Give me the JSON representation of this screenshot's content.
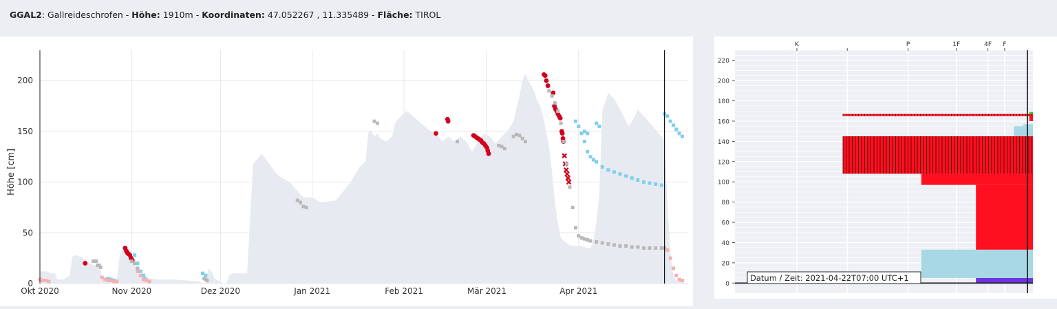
{
  "header": {
    "station_id": "GGAL2",
    "station_name": "Gallreideschrofen",
    "hoehe_label": "Höhe:",
    "hoehe_value": "1910m",
    "koord_label": "Koordinaten:",
    "koord_value": "47.052267 , 11.335489",
    "flaeche_label": "Fläche:",
    "flaeche_value": "TIROL"
  },
  "chart_data": [
    {
      "type": "area",
      "title": "",
      "xlabel": "",
      "ylabel": "Höhe [cm]",
      "ylim": [
        0,
        230
      ],
      "yticks": [
        0,
        50,
        100,
        150,
        200
      ],
      "x_tick_labels": [
        "Okt 2020",
        "Nov 2020",
        "Dez 2020",
        "Jan 2021",
        "Feb 2021",
        "Mär 2021",
        "Apr 2021"
      ],
      "x_tick_days": [
        0,
        31,
        61,
        92,
        123,
        151,
        182
      ],
      "x_range_days": [
        0,
        219
      ],
      "cursor_day": 211,
      "grid": true,
      "colors": {
        "area": "#e8eaf2",
        "red": "#d0021b",
        "grey": "#b8b8b8",
        "blue": "#7fd0ec",
        "pink": "#f4b0b0"
      },
      "snow_height_series": {
        "name": "",
        "x": [
          0,
          1,
          2,
          3,
          4,
          5,
          6,
          8,
          10,
          11,
          12,
          13,
          14,
          15,
          16,
          17,
          18,
          19,
          20,
          21,
          22,
          24,
          25,
          26,
          27,
          28,
          29,
          30,
          31,
          32,
          33,
          34,
          35,
          36,
          37,
          38,
          40,
          45,
          50,
          54,
          55,
          56,
          57,
          58,
          59,
          62,
          63,
          64,
          65,
          66,
          67,
          68,
          69,
          70,
          72,
          75,
          80,
          85,
          88,
          89,
          90,
          92,
          95,
          100,
          105,
          108,
          110,
          111,
          112,
          113,
          114,
          115,
          117,
          119,
          120,
          121,
          122,
          124,
          126,
          128,
          130,
          132,
          134,
          136,
          138,
          140,
          142,
          144,
          146,
          148,
          150,
          152,
          154,
          156,
          158,
          160,
          162,
          163,
          164,
          165,
          166,
          167,
          168,
          169,
          170,
          171,
          172,
          173,
          174,
          175,
          176,
          177,
          178,
          179,
          180,
          181,
          182,
          183,
          184,
          185,
          186,
          187,
          188,
          189,
          190,
          192,
          194,
          196,
          198,
          199,
          200,
          201,
          202,
          203,
          204,
          205,
          206,
          207,
          208,
          209,
          210,
          211,
          212,
          213,
          214,
          215,
          216,
          217,
          218
        ],
        "y": [
          12,
          12,
          12,
          11,
          10,
          10,
          4,
          4,
          8,
          27,
          28,
          27,
          26,
          24,
          22,
          20,
          18,
          18,
          18,
          6,
          6,
          6,
          5,
          5,
          28,
          37,
          37,
          35,
          30,
          22,
          12,
          8,
          6,
          6,
          5,
          5,
          4,
          4,
          3,
          2,
          0,
          0,
          15,
          12,
          5,
          0,
          0,
          8,
          10,
          10,
          10,
          10,
          10,
          10,
          118,
          128,
          108,
          98,
          88,
          85,
          85,
          85,
          80,
          82,
          100,
          115,
          120,
          150,
          150,
          145,
          148,
          143,
          140,
          145,
          158,
          162,
          165,
          170,
          165,
          160,
          155,
          150,
          148,
          140,
          145,
          140,
          145,
          140,
          130,
          140,
          148,
          145,
          138,
          145,
          150,
          160,
          185,
          200,
          207,
          200,
          195,
          190,
          180,
          175,
          165,
          150,
          135,
          110,
          80,
          60,
          45,
          42,
          40,
          38,
          37,
          37,
          37,
          37,
          36,
          35,
          35,
          42,
          60,
          90,
          170,
          188,
          182,
          172,
          160,
          155,
          160,
          165,
          172,
          168,
          165,
          162,
          158,
          155,
          152,
          148,
          145,
          140,
          80,
          30,
          8,
          3,
          2,
          2,
          0
        ]
      },
      "series": [
        {
          "name": "",
          "marker": "circle",
          "color": "red",
          "x": [
            15.3
          ],
          "y": [
            20
          ]
        },
        {
          "name": "",
          "marker": "circle",
          "color": "red",
          "x": [
            28.8,
            29.2,
            29.6,
            30.0,
            30.4,
            30.8,
            31.2
          ],
          "y": [
            35,
            32,
            30,
            29,
            28,
            25,
            23
          ]
        },
        {
          "name": "",
          "marker": "circle",
          "color": "red",
          "x": [
            133.8,
            137.7,
            137.9
          ],
          "y": [
            148,
            162,
            160
          ]
        },
        {
          "name": "",
          "marker": "circle",
          "color": "red",
          "x": [
            146.5,
            147,
            147.5,
            148,
            148.5,
            149,
            149.5,
            150,
            150.5,
            151,
            151.3,
            151.6
          ],
          "y": [
            146,
            145,
            144,
            143,
            142,
            141,
            139,
            138,
            136,
            134,
            131,
            128
          ]
        },
        {
          "name": "",
          "marker": "circle",
          "color": "red",
          "x": [
            170.3,
            170.7,
            171.1,
            171.6,
            173.4,
            173.8,
            174.2,
            174.6,
            175.0,
            175.4,
            175.8,
            176.3
          ],
          "y": [
            206,
            205,
            200,
            195,
            188,
            175,
            172,
            170,
            167,
            165,
            163,
            150
          ]
        },
        {
          "name": "",
          "marker": "circle",
          "color": "red",
          "x": [
            176.5,
            176.7,
            176.9
          ],
          "y": [
            148,
            143,
            140
          ]
        },
        {
          "name": "",
          "marker": "cross",
          "color": "red",
          "x": [
            177.2,
            177.5,
            177.8,
            178.1,
            178.4,
            178.7
          ],
          "y": [
            126,
            118,
            112,
            108,
            104,
            100
          ]
        },
        {
          "name": "",
          "marker": "square",
          "color": "grey",
          "x": [
            18,
            19,
            19.5,
            20,
            20.5,
            31,
            32,
            33,
            34,
            35,
            55,
            55.5,
            56,
            56.5,
            87,
            88,
            89,
            90,
            113,
            114,
            141,
            155,
            156,
            157,
            160,
            161,
            162,
            163,
            164
          ],
          "y": [
            22,
            22,
            18,
            18,
            16,
            22,
            20,
            15,
            12,
            8,
            10,
            5,
            4,
            3,
            82,
            80,
            76,
            75,
            160,
            158,
            140,
            136,
            135,
            133,
            145,
            147,
            146,
            143,
            140
          ]
        },
        {
          "name": "",
          "marker": "square",
          "color": "grey",
          "x": [
            172,
            173,
            174,
            175,
            176,
            177,
            178,
            179,
            180,
            181,
            182,
            183,
            184,
            185,
            186,
            188,
            190,
            192,
            194,
            196,
            198,
            200,
            202,
            204,
            206,
            208,
            210,
            211
          ],
          "y": [
            190,
            185,
            178,
            170,
            158,
            140,
            118,
            95,
            75,
            55,
            47,
            45,
            44,
            43,
            42,
            41,
            40,
            39,
            38,
            37,
            37,
            36,
            36,
            35,
            35,
            35,
            35,
            35
          ]
        },
        {
          "name": "",
          "marker": "square",
          "color": "blue",
          "x": [
            23,
            24,
            24.5,
            25,
            32,
            33,
            34,
            35,
            35.5,
            55,
            56,
            181,
            182,
            183,
            184,
            185,
            186,
            187,
            188,
            190,
            192,
            194,
            196,
            198,
            200,
            202,
            204,
            206,
            208,
            210
          ],
          "y": [
            5,
            4,
            3,
            3,
            28,
            20,
            12,
            8,
            5,
            10,
            8,
            160,
            155,
            148,
            140,
            130,
            125,
            122,
            120,
            115,
            112,
            110,
            108,
            106,
            104,
            102,
            100,
            99,
            98,
            97
          ]
        },
        {
          "name": "",
          "marker": "square",
          "color": "blue",
          "x": [
            184,
            185,
            188,
            189,
            211,
            212,
            213,
            214,
            215,
            216,
            217
          ],
          "y": [
            150,
            148,
            158,
            155,
            167,
            165,
            160,
            156,
            152,
            148,
            145
          ]
        },
        {
          "name": "",
          "marker": "square",
          "color": "pink",
          "x": [
            0,
            1,
            2,
            3,
            21,
            22,
            23,
            24,
            25,
            26,
            33,
            34,
            35,
            36,
            37,
            212,
            213,
            214,
            215,
            216,
            217
          ],
          "y": [
            4,
            3,
            3,
            2,
            6,
            4,
            3,
            3,
            2,
            2,
            12,
            8,
            4,
            3,
            2,
            33,
            25,
            15,
            8,
            4,
            3
          ]
        }
      ]
    },
    {
      "type": "bar",
      "title": "",
      "ylim": [
        -10,
        230
      ],
      "yticks": [
        0,
        20,
        40,
        60,
        80,
        100,
        120,
        140,
        160,
        180,
        200,
        220
      ],
      "hardness_tick_labels": [
        "K",
        "",
        "P",
        "1F",
        "4F",
        "F"
      ],
      "colors": {
        "red": "#ff1020",
        "lightblue": "#a8d8e6",
        "purple": "#6a35e0",
        "green": "#32c832",
        "black": "#111111"
      },
      "layers": [
        {
          "y0": 0,
          "y1": 5,
          "x0": 0.76,
          "x1": 1.0,
          "color": "purple"
        },
        {
          "y0": 5,
          "y1": 33,
          "x0": 0.53,
          "x1": 1.0,
          "color": "lightblue"
        },
        {
          "y0": 33,
          "y1": 97,
          "x0": 0.76,
          "x1": 1.0,
          "color": "red"
        },
        {
          "y0": 97,
          "y1": 108,
          "x0": 0.53,
          "x1": 1.0,
          "color": "red"
        },
        {
          "y0": 108,
          "y1": 145,
          "x0": 0.2,
          "x1": 1.0,
          "color": "red",
          "hatched": true
        },
        {
          "y0": 145,
          "y1": 155,
          "x0": 0.92,
          "x1": 1.0,
          "color": "lightblue"
        },
        {
          "y0": 155,
          "y1": 157,
          "x0": 0.96,
          "x1": 1.0,
          "color": "lightblue"
        },
        {
          "y0": 160,
          "y1": 165,
          "x0": 0.985,
          "x1": 1.0,
          "color": "red"
        },
        {
          "y0": 165,
          "y1": 167,
          "x0": 0.2,
          "x1": 1.0,
          "color": "red",
          "hatched": true
        },
        {
          "y0": 167,
          "y1": 169,
          "x0": 0.985,
          "x1": 1.0,
          "color": "green"
        }
      ],
      "tooltip": "Datum / Zeit: 2021-04-22T07:00 UTC+1"
    }
  ]
}
